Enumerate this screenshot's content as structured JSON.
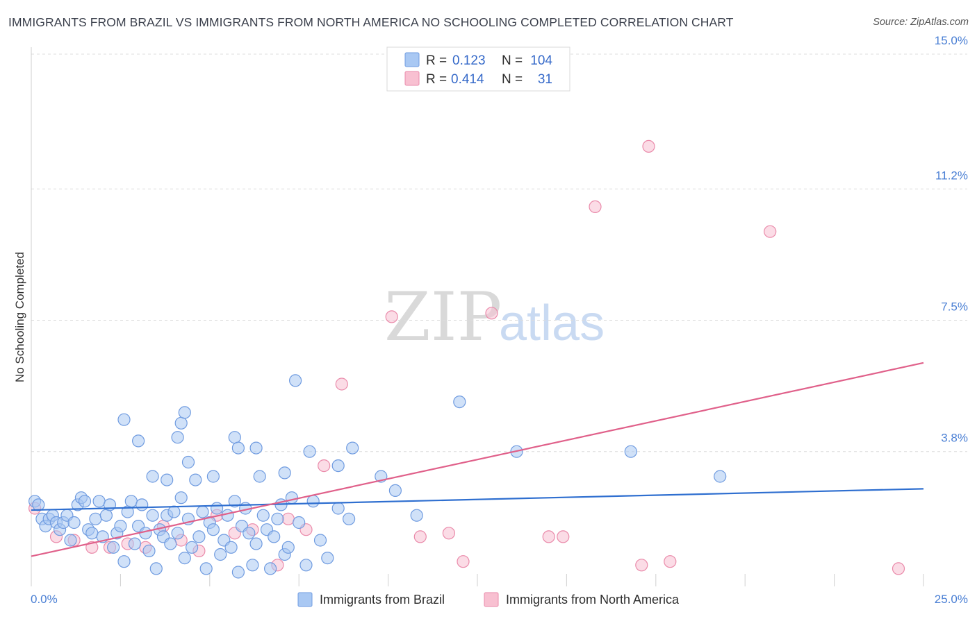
{
  "header": {
    "title": "IMMIGRANTS FROM BRAZIL VS IMMIGRANTS FROM NORTH AMERICA NO SCHOOLING COMPLETED CORRELATION CHART",
    "source": "Source: ZipAtlas.com"
  },
  "watermark": {
    "part1": "ZIP",
    "part2": "atlas"
  },
  "legend": {
    "rows": [
      {
        "r_label": "R =",
        "r_value": "0.123",
        "n_label": "N =",
        "n_value": "104",
        "color": "#a9c8f3",
        "stroke": "#6f9be0"
      },
      {
        "r_label": "R =",
        "r_value": "0.414",
        "n_label": "N =",
        "n_value": "31",
        "color": "#f8c0d1",
        "stroke": "#ea8aaa"
      }
    ]
  },
  "bottom_legend": {
    "items": [
      {
        "label": "Immigrants from Brazil",
        "color": "#a9c8f3",
        "stroke": "#6f9be0"
      },
      {
        "label": "Immigrants from North America",
        "color": "#f8c0d1",
        "stroke": "#ea8aaa"
      }
    ]
  },
  "chart_data": {
    "type": "scatter",
    "title": "IMMIGRANTS FROM BRAZIL VS IMMIGRANTS FROM NORTH AMERICA NO SCHOOLING COMPLETED CORRELATION CHART",
    "xlabel": "",
    "ylabel": "No Schooling Completed",
    "xlim": [
      0,
      25
    ],
    "ylim": [
      0,
      15
    ],
    "x_tick_labels": [
      "0.0%",
      "25.0%"
    ],
    "y_ticks": [
      3.8,
      7.5,
      11.2,
      15.0
    ],
    "y_tick_labels": [
      "3.8%",
      "7.5%",
      "11.2%",
      "15.0%"
    ],
    "series": [
      {
        "name": "Immigrants from Brazil",
        "color": "#a9c8f3",
        "stroke": "#6f9be0",
        "line_color": "#2f6fd0",
        "trend": {
          "x": [
            0,
            25
          ],
          "y": [
            2.15,
            2.75
          ]
        },
        "points": [
          [
            0.1,
            2.4
          ],
          [
            0.2,
            2.3
          ],
          [
            0.3,
            1.9
          ],
          [
            0.4,
            1.7
          ],
          [
            0.5,
            1.9
          ],
          [
            0.6,
            2.0
          ],
          [
            0.7,
            1.8
          ],
          [
            0.8,
            1.6
          ],
          [
            0.9,
            1.8
          ],
          [
            1.0,
            2.0
          ],
          [
            1.1,
            1.3
          ],
          [
            1.2,
            1.8
          ],
          [
            1.3,
            2.3
          ],
          [
            1.4,
            2.5
          ],
          [
            1.5,
            2.4
          ],
          [
            1.6,
            1.6
          ],
          [
            1.7,
            1.5
          ],
          [
            1.8,
            1.9
          ],
          [
            1.9,
            2.4
          ],
          [
            2.0,
            1.4
          ],
          [
            2.1,
            2.0
          ],
          [
            2.2,
            2.3
          ],
          [
            2.3,
            1.1
          ],
          [
            2.4,
            1.5
          ],
          [
            2.5,
            1.7
          ],
          [
            2.6,
            0.7
          ],
          [
            2.7,
            2.1
          ],
          [
            2.8,
            2.4
          ],
          [
            2.9,
            1.2
          ],
          [
            3.0,
            1.7
          ],
          [
            3.1,
            2.3
          ],
          [
            3.2,
            1.5
          ],
          [
            3.3,
            1.0
          ],
          [
            3.4,
            2.0
          ],
          [
            3.5,
            0.5
          ],
          [
            3.6,
            1.6
          ],
          [
            3.7,
            1.4
          ],
          [
            3.8,
            2.0
          ],
          [
            3.9,
            1.2
          ],
          [
            4.0,
            2.1
          ],
          [
            4.1,
            1.5
          ],
          [
            4.2,
            2.5
          ],
          [
            4.3,
            0.8
          ],
          [
            4.4,
            1.9
          ],
          [
            4.5,
            1.1
          ],
          [
            4.6,
            3.0
          ],
          [
            4.7,
            1.4
          ],
          [
            4.8,
            2.1
          ],
          [
            4.9,
            0.5
          ],
          [
            5.0,
            1.8
          ],
          [
            5.1,
            1.6
          ],
          [
            5.2,
            2.2
          ],
          [
            5.3,
            0.9
          ],
          [
            5.4,
            1.3
          ],
          [
            5.5,
            2.0
          ],
          [
            5.6,
            1.1
          ],
          [
            5.7,
            2.4
          ],
          [
            5.8,
            0.4
          ],
          [
            5.9,
            1.7
          ],
          [
            6.0,
            2.2
          ],
          [
            6.1,
            1.5
          ],
          [
            6.2,
            0.6
          ],
          [
            6.3,
            1.2
          ],
          [
            6.4,
            3.1
          ],
          [
            6.5,
            2.0
          ],
          [
            6.6,
            1.6
          ],
          [
            6.7,
            0.5
          ],
          [
            6.8,
            1.4
          ],
          [
            6.9,
            1.9
          ],
          [
            7.0,
            2.3
          ],
          [
            7.1,
            0.9
          ],
          [
            7.2,
            1.1
          ],
          [
            7.3,
            2.5
          ],
          [
            7.5,
            1.8
          ],
          [
            7.7,
            0.6
          ],
          [
            7.9,
            2.4
          ],
          [
            8.1,
            1.3
          ],
          [
            8.3,
            0.8
          ],
          [
            8.6,
            2.2
          ],
          [
            8.9,
            1.9
          ],
          [
            2.6,
            4.7
          ],
          [
            3.0,
            4.1
          ],
          [
            3.4,
            3.1
          ],
          [
            3.8,
            3.0
          ],
          [
            4.1,
            4.2
          ],
          [
            4.2,
            4.6
          ],
          [
            4.3,
            4.9
          ],
          [
            4.4,
            3.5
          ],
          [
            5.1,
            3.1
          ],
          [
            5.7,
            4.2
          ],
          [
            5.8,
            3.9
          ],
          [
            6.3,
            3.9
          ],
          [
            7.1,
            3.2
          ],
          [
            7.4,
            5.8
          ],
          [
            7.8,
            3.8
          ],
          [
            8.6,
            3.4
          ],
          [
            9.0,
            3.9
          ],
          [
            9.8,
            3.1
          ],
          [
            10.2,
            2.7
          ],
          [
            10.8,
            2.0
          ],
          [
            12.0,
            5.2
          ],
          [
            13.6,
            3.8
          ],
          [
            16.8,
            3.8
          ],
          [
            19.3,
            3.1
          ]
        ]
      },
      {
        "name": "Immigrants from North America",
        "color": "#f8c0d1",
        "stroke": "#ea8aaa",
        "line_color": "#e0608a",
        "trend": {
          "x": [
            0,
            25
          ],
          "y": [
            0.85,
            6.3
          ]
        },
        "points": [
          [
            0.1,
            2.2
          ],
          [
            0.7,
            1.4
          ],
          [
            1.2,
            1.3
          ],
          [
            1.7,
            1.1
          ],
          [
            2.2,
            1.1
          ],
          [
            2.7,
            1.2
          ],
          [
            3.2,
            1.1
          ],
          [
            3.7,
            1.7
          ],
          [
            4.2,
            1.3
          ],
          [
            4.7,
            1.0
          ],
          [
            5.2,
            2.0
          ],
          [
            5.7,
            1.5
          ],
          [
            6.2,
            1.6
          ],
          [
            6.9,
            0.6
          ],
          [
            7.2,
            1.9
          ],
          [
            7.7,
            1.6
          ],
          [
            8.2,
            3.4
          ],
          [
            8.7,
            5.7
          ],
          [
            10.1,
            7.6
          ],
          [
            10.9,
            1.4
          ],
          [
            11.7,
            1.5
          ],
          [
            12.1,
            0.7
          ],
          [
            12.9,
            7.7
          ],
          [
            14.5,
            1.4
          ],
          [
            14.9,
            1.4
          ],
          [
            15.8,
            10.7
          ],
          [
            17.1,
            0.6
          ],
          [
            17.3,
            12.4
          ],
          [
            17.9,
            0.7
          ],
          [
            20.7,
            10.0
          ],
          [
            24.3,
            0.5
          ]
        ]
      }
    ]
  }
}
